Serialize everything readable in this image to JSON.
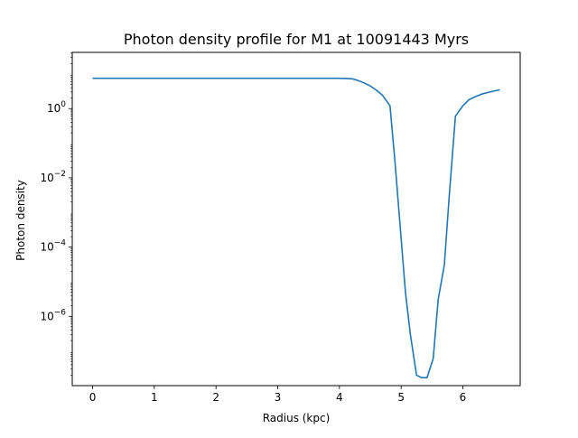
{
  "chart_data": {
    "type": "line",
    "title": "Photon density profile for M1 at 10091443 Myrs",
    "xlabel": "Radius (kpc)",
    "ylabel": "Photon density",
    "xlim": [
      -0.33,
      6.93
    ],
    "ylim": [
      1e-08,
      42
    ],
    "yscale": "log",
    "grid": false,
    "legend": "none",
    "xticks": [
      0,
      1,
      2,
      3,
      4,
      5,
      6
    ],
    "yticks": [
      {
        "value": 1e-06,
        "base": "10",
        "exp": "−6"
      },
      {
        "value": 0.0001,
        "base": "10",
        "exp": "−4"
      },
      {
        "value": 0.01,
        "base": "10",
        "exp": "−2"
      },
      {
        "value": 1,
        "base": "10",
        "exp": "0"
      }
    ],
    "line_color": "#1f77b4",
    "series": [
      {
        "x": [
          0.0,
          0.5,
          1.0,
          1.5,
          2.0,
          2.5,
          3.0,
          3.5,
          4.0,
          4.2,
          4.3,
          4.4,
          4.5,
          4.6,
          4.7,
          4.82,
          4.9,
          4.98,
          5.07,
          5.15,
          5.25,
          5.33,
          5.42,
          5.52,
          5.6,
          5.7,
          5.78,
          5.88,
          6.0,
          6.1,
          6.2,
          6.3,
          6.4,
          6.5,
          6.6
        ],
        "y": [
          7.5,
          7.5,
          7.5,
          7.5,
          7.5,
          7.5,
          7.5,
          7.5,
          7.5,
          7.3,
          6.5,
          5.5,
          4.5,
          3.4,
          2.4,
          1.2,
          0.03,
          0.0005,
          5e-06,
          3e-07,
          2e-08,
          1.7e-08,
          1.7e-08,
          6e-08,
          3e-06,
          3e-05,
          0.003,
          0.6,
          1.2,
          1.8,
          2.2,
          2.6,
          2.9,
          3.2,
          3.5
        ]
      }
    ]
  }
}
